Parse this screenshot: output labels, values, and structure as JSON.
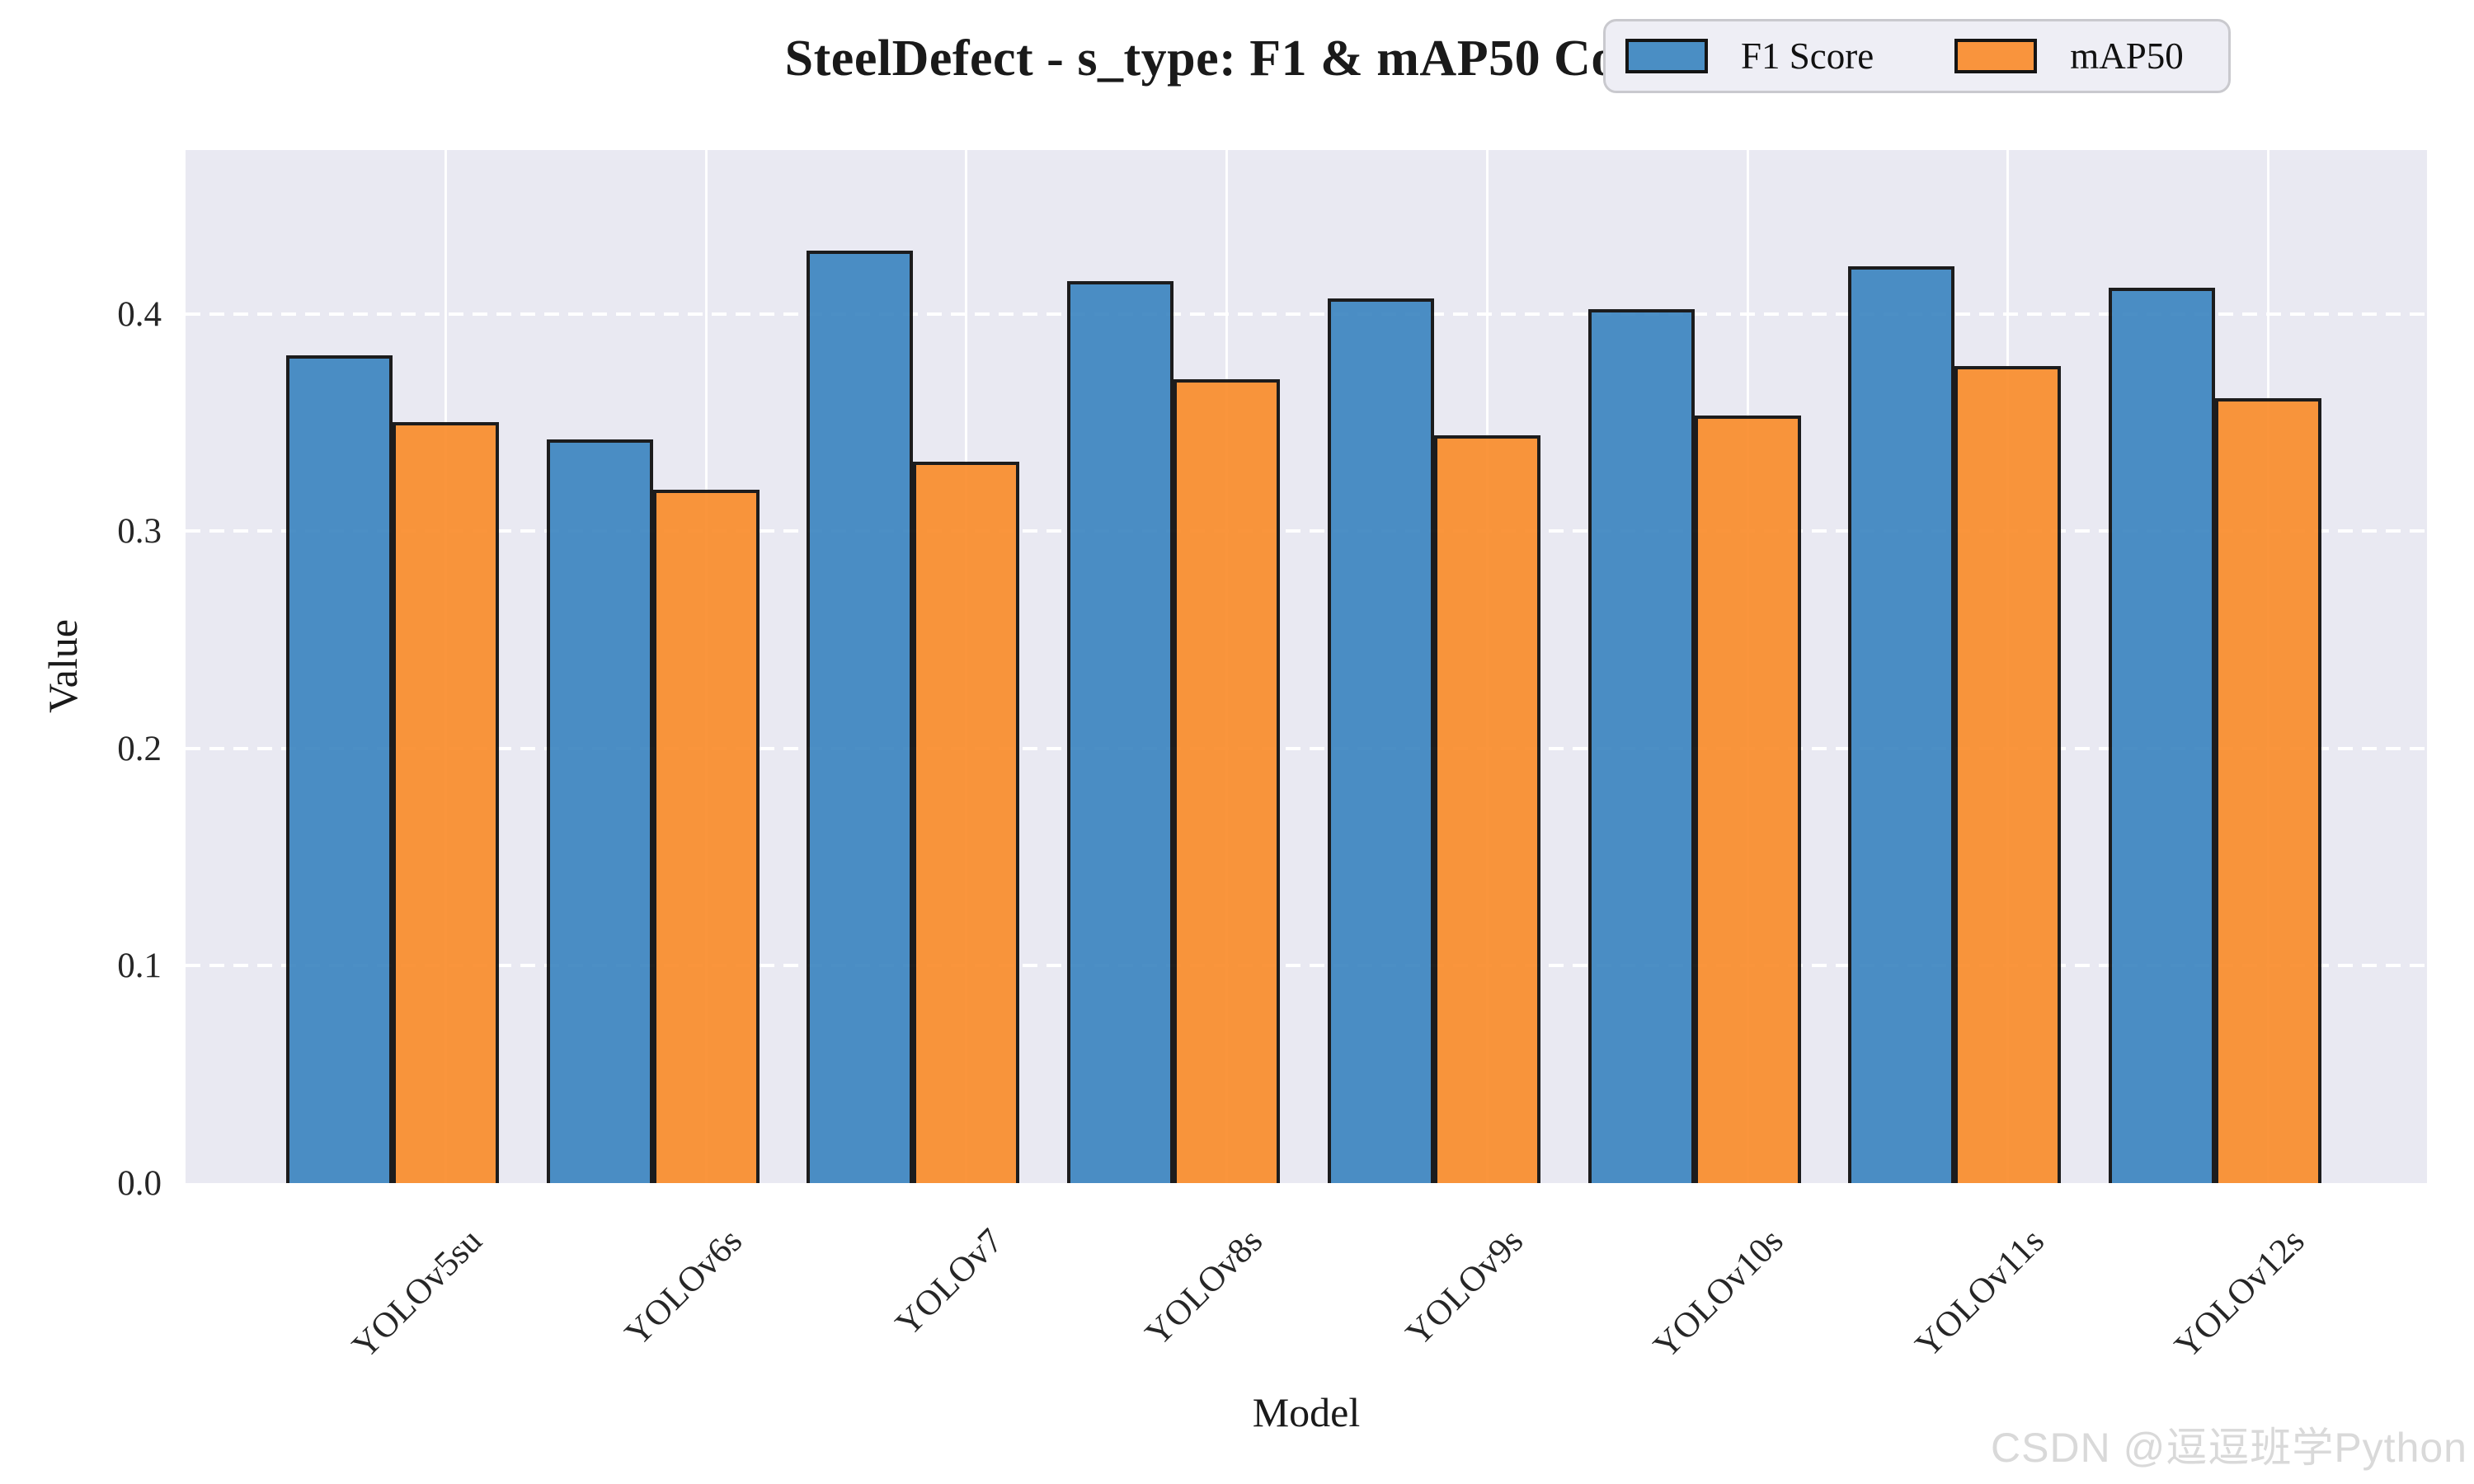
{
  "title": "SteelDefect - s_type: F1 & mAP50 Comparison",
  "watermark": "CSDN @逗逗班学Python",
  "chart_data": {
    "type": "bar",
    "title": "SteelDefect - s_type: F1 & mAP50 Comparison",
    "xlabel": "Model",
    "ylabel": "Value",
    "categories": [
      "YOLOv5su",
      "YOLOv6s",
      "YOLOv7",
      "YOLOv8s",
      "YOLOv9s",
      "YOLOv10s",
      "YOLOv11s",
      "YOLOv12s"
    ],
    "series": [
      {
        "name": "F1 Score",
        "color": "#3f87c1",
        "legend_color": "#4a8ec4",
        "values": [
          0.381,
          0.342,
          0.429,
          0.415,
          0.407,
          0.402,
          0.422,
          0.412
        ]
      },
      {
        "name": "mAP50",
        "color": "#fa8e2e",
        "legend_color": "#f9943d",
        "values": [
          0.35,
          0.319,
          0.332,
          0.37,
          0.344,
          0.353,
          0.376,
          0.361
        ]
      }
    ],
    "y_ticks": [
      0.0,
      0.1,
      0.2,
      0.3,
      0.4
    ],
    "ylim": [
      0,
      0.4753
    ],
    "grid": true,
    "grid_color": "#ffffff",
    "plot_bg_color": "#e9e9f2",
    "bar_edge_color": "#0d0d0d",
    "legend_position": "upper right"
  }
}
